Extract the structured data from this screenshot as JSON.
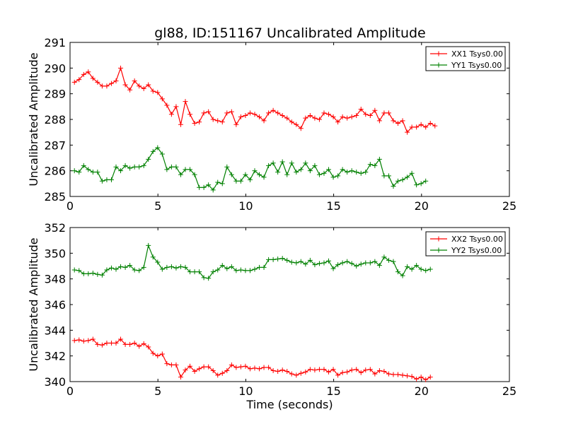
{
  "title": "gl88, ID:151167 Uncalibrated Amplitude",
  "chart_data": [
    {
      "type": "line",
      "ylabel": "Uncalibrated Amplitude",
      "xlabel": "",
      "xlim": [
        0,
        25
      ],
      "ylim": [
        285,
        291
      ],
      "xticks": [
        "0",
        "5",
        "10",
        "15",
        "20",
        "25"
      ],
      "yticks": [
        "285",
        "286",
        "287",
        "288",
        "289",
        "290",
        "291"
      ],
      "legend_position": "top-right",
      "series": [
        {
          "name": "XX1 Tsys0.00",
          "color": "#ff0000",
          "values": [
            289.45,
            289.55,
            289.75,
            289.85,
            289.6,
            289.45,
            289.3,
            289.3,
            289.4,
            289.5,
            290.0,
            289.35,
            289.15,
            289.5,
            289.3,
            289.2,
            289.35,
            289.1,
            289.05,
            288.8,
            288.55,
            288.2,
            288.5,
            287.8,
            288.7,
            288.2,
            287.85,
            287.9,
            288.25,
            288.3,
            288.0,
            287.95,
            287.9,
            288.25,
            288.3,
            287.8,
            288.1,
            288.15,
            288.25,
            288.2,
            288.1,
            287.95,
            288.25,
            288.35,
            288.25,
            288.15,
            288.05,
            287.9,
            287.8,
            287.65,
            288.05,
            288.15,
            288.05,
            288.0,
            288.25,
            288.2,
            288.1,
            287.9,
            288.1,
            288.05,
            288.1,
            288.15,
            288.4,
            288.2,
            288.15,
            288.35,
            287.95,
            288.25,
            288.25,
            287.95,
            287.85,
            287.95,
            287.5,
            287.7,
            287.7,
            287.8,
            287.7,
            287.85,
            287.75
          ],
          "marker": "+"
        },
        {
          "name": "YY1 Tsys0.00",
          "color": "#008000",
          "values": [
            286.0,
            285.95,
            286.2,
            286.05,
            285.95,
            285.95,
            285.6,
            285.65,
            285.65,
            286.15,
            286.0,
            286.2,
            286.1,
            286.15,
            286.15,
            286.2,
            286.45,
            286.75,
            286.9,
            286.65,
            286.05,
            286.15,
            286.15,
            285.85,
            286.05,
            286.05,
            285.85,
            285.35,
            285.35,
            285.45,
            285.25,
            285.55,
            285.5,
            286.15,
            285.85,
            285.6,
            285.6,
            285.85,
            285.65,
            286.0,
            285.85,
            285.75,
            286.2,
            286.3,
            285.95,
            286.35,
            285.85,
            286.3,
            285.95,
            286.05,
            286.3,
            286.0,
            286.2,
            285.85,
            285.9,
            286.05,
            285.75,
            285.8,
            286.05,
            285.95,
            286.0,
            285.95,
            285.9,
            285.95,
            286.25,
            286.2,
            286.45,
            285.8,
            285.8,
            285.4,
            285.6,
            285.65,
            285.75,
            285.9,
            285.45,
            285.5,
            285.6
          ],
          "marker": "+"
        }
      ]
    },
    {
      "type": "line",
      "ylabel": "Uncalibrated Amplitude",
      "xlabel": "Time (seconds)",
      "xlim": [
        0,
        25
      ],
      "ylim": [
        340,
        352
      ],
      "xticks": [
        "0",
        "5",
        "10",
        "15",
        "20",
        "25"
      ],
      "yticks": [
        "340",
        "342",
        "344",
        "346",
        "348",
        "350",
        "352"
      ],
      "legend_position": "top-right",
      "series": [
        {
          "name": "XX2 Tsys0.00",
          "color": "#ff0000",
          "values": [
            343.2,
            343.25,
            343.15,
            343.2,
            343.3,
            342.9,
            342.85,
            343.0,
            343.0,
            343.0,
            343.3,
            342.9,
            342.9,
            343.0,
            342.75,
            342.95,
            342.7,
            342.2,
            342.0,
            342.15,
            341.4,
            341.3,
            341.3,
            340.35,
            340.9,
            341.2,
            340.8,
            341.0,
            341.15,
            341.15,
            340.85,
            340.5,
            340.65,
            340.85,
            341.3,
            341.1,
            341.15,
            341.2,
            341.0,
            341.05,
            341.0,
            341.1,
            341.1,
            340.85,
            340.8,
            340.9,
            340.8,
            340.6,
            340.5,
            340.65,
            340.75,
            340.95,
            340.9,
            340.95,
            340.95,
            340.75,
            340.95,
            340.5,
            340.7,
            340.75,
            340.9,
            340.95,
            340.7,
            340.9,
            340.95,
            340.6,
            340.85,
            340.8,
            340.6,
            340.55,
            340.55,
            340.5,
            340.45,
            340.4,
            340.2,
            340.35,
            340.15,
            340.35
          ],
          "marker": "+"
        },
        {
          "name": "YY2 Tsys0.00",
          "color": "#008000",
          "values": [
            348.7,
            348.65,
            348.4,
            348.4,
            348.45,
            348.35,
            348.3,
            348.7,
            348.85,
            348.75,
            348.95,
            348.9,
            349.05,
            348.7,
            348.65,
            348.9,
            350.6,
            349.7,
            349.3,
            348.75,
            348.9,
            348.95,
            348.85,
            348.95,
            348.9,
            348.55,
            348.55,
            348.55,
            348.1,
            348.05,
            348.55,
            348.7,
            349.05,
            348.8,
            348.95,
            348.65,
            348.7,
            348.65,
            348.65,
            348.75,
            348.9,
            348.9,
            349.5,
            349.5,
            349.55,
            349.6,
            349.45,
            349.3,
            349.25,
            349.35,
            349.15,
            349.45,
            349.1,
            349.2,
            349.25,
            349.4,
            348.8,
            349.1,
            349.25,
            349.35,
            349.2,
            349.0,
            349.15,
            349.25,
            349.25,
            349.35,
            349.05,
            349.7,
            349.45,
            349.35,
            348.55,
            348.25,
            348.95,
            348.75,
            349.05,
            348.75,
            348.65,
            348.75
          ],
          "marker": "+"
        }
      ]
    }
  ]
}
